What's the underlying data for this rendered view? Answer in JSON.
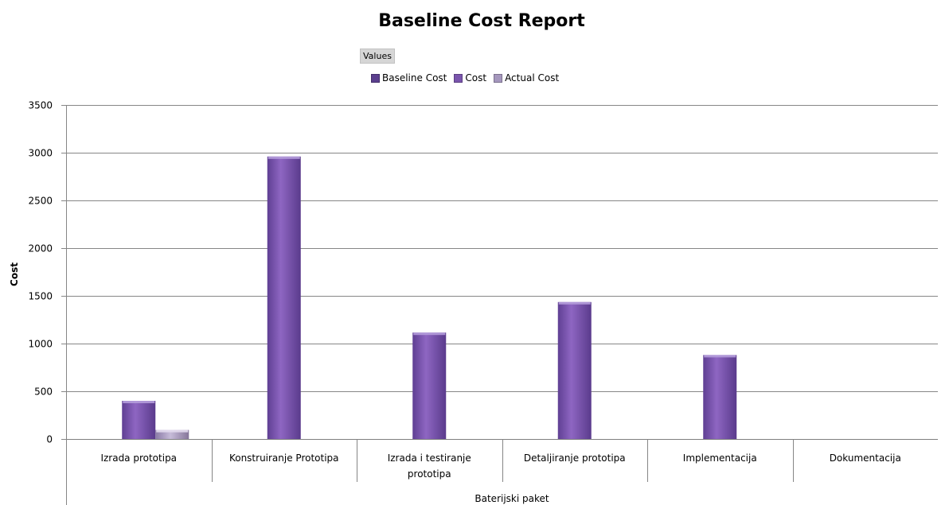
{
  "values_label": "Values",
  "chart_data": {
    "type": "bar",
    "title": "Baseline Cost Report",
    "xlabel": "Baterijski paket",
    "ylabel": "Cost",
    "ylim": [
      0,
      3500
    ],
    "yticks": [
      0,
      500,
      1000,
      1500,
      2000,
      2500,
      3000,
      3500
    ],
    "grid": true,
    "legend_position": "top-center",
    "categories": [
      [
        "Izrada prototipa"
      ],
      [
        "Konstruiranje Prototipa"
      ],
      [
        "Izrada i testiranje",
        "prototipa"
      ],
      [
        "Detaljiranje prototipa"
      ],
      [
        "Implementacija"
      ],
      [
        "Dokumentacija"
      ]
    ],
    "series": [
      {
        "name": "Baseline Cost",
        "color": "#5b3f8e",
        "values": [
          0,
          0,
          0,
          0,
          0,
          0
        ]
      },
      {
        "name": "Cost",
        "color": "#7a55ad",
        "values": [
          400,
          2960,
          1115,
          1435,
          880,
          0
        ]
      },
      {
        "name": "Actual Cost",
        "color": "#a597bd",
        "values": [
          95,
          0,
          0,
          0,
          0,
          0
        ]
      }
    ]
  }
}
